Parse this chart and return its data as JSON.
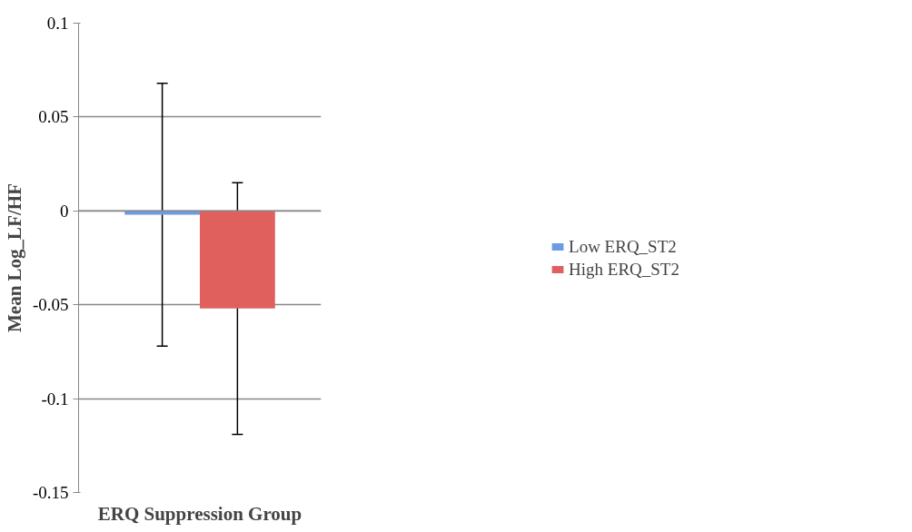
{
  "chart_data": {
    "type": "bar",
    "xlabel": "ERQ Suppression Group",
    "ylabel": "Mean Log_LF/HF",
    "categories": [
      null
    ],
    "series": [
      {
        "name": "Low ERQ_ST2",
        "color": "#6b9be6",
        "values": [
          -0.002
        ],
        "errors": [
          0.07
        ]
      },
      {
        "name": "High ERQ_ST2",
        "color": "#e0605e",
        "values": [
          -0.052
        ],
        "errors": [
          0.067
        ]
      }
    ],
    "ylim": [
      -0.15,
      0.1
    ],
    "yticks": [
      -0.15,
      -0.1,
      -0.05,
      0,
      0.05,
      0.1
    ],
    "grid": "y",
    "legend": "right"
  }
}
